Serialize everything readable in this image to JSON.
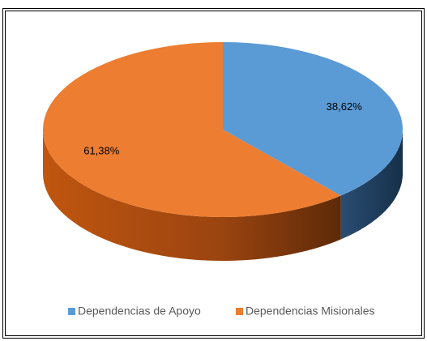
{
  "chart_data": {
    "type": "pie",
    "categories": [
      "Dependencias de Apoyo",
      "Dependencias Misionales"
    ],
    "values": [
      38.62,
      61.38
    ],
    "value_labels": [
      "38,62%",
      "61,38%"
    ],
    "colors": [
      "#5b9bd5",
      "#ed7d31"
    ],
    "legend": "bottom"
  }
}
